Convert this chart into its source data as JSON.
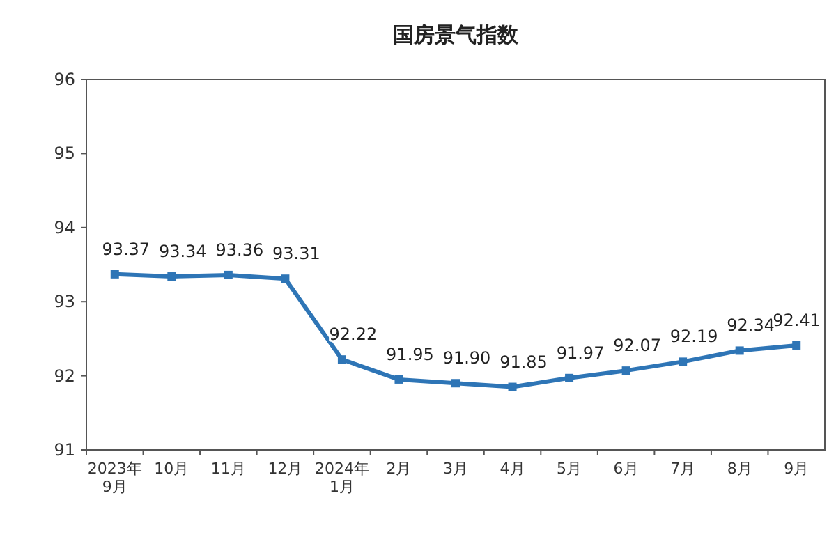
{
  "chart_data": {
    "type": "line",
    "title": "国房景气指数",
    "categories": [
      "2023年\n9月",
      "10月",
      "11月",
      "12月",
      "2024年\n1月",
      "2月",
      "3月",
      "4月",
      "5月",
      "6月",
      "7月",
      "8月",
      "9月"
    ],
    "series": [
      {
        "color": "#2e75b6",
        "values": [
          93.37,
          93.34,
          93.36,
          93.31,
          92.22,
          91.95,
          91.9,
          91.85,
          91.97,
          92.07,
          92.19,
          92.34,
          92.41
        ]
      }
    ],
    "ylim": [
      91,
      96
    ],
    "yticks": [
      91,
      92,
      93,
      94,
      95,
      96
    ],
    "value_labels": [
      "93.37",
      "93.34",
      "93.36",
      "93.31",
      "92.22",
      "91.95",
      "91.90",
      "91.85",
      "91.97",
      "92.07",
      "92.19",
      "92.34",
      "92.41"
    ],
    "marker": "square",
    "line_style": "solid",
    "grid": false
  }
}
